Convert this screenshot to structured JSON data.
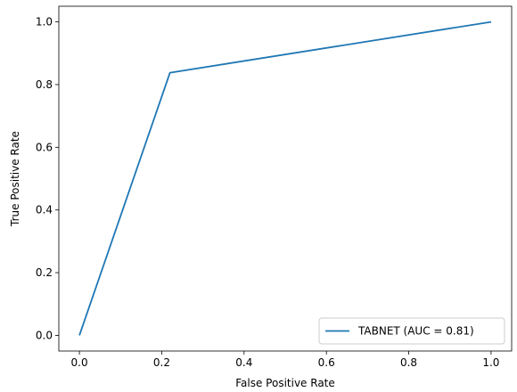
{
  "chart_data": {
    "type": "line",
    "xlabel": "False Positive Rate",
    "ylabel": "True Positive Rate",
    "xlim": [
      -0.05,
      1.05
    ],
    "ylim": [
      -0.05,
      1.05
    ],
    "xticks": [
      0.0,
      0.2,
      0.4,
      0.6,
      0.8,
      1.0
    ],
    "yticks": [
      0.0,
      0.2,
      0.4,
      0.6,
      0.8,
      1.0
    ],
    "xtick_labels": [
      "0.0",
      "0.2",
      "0.4",
      "0.6",
      "0.8",
      "1.0"
    ],
    "ytick_labels": [
      "0.0",
      "0.2",
      "0.4",
      "0.6",
      "0.8",
      "1.0"
    ],
    "grid": false,
    "legend_position": "bottom-right",
    "series": [
      {
        "name": "TABNET (AUC = 0.81)",
        "color": "#1f77b4",
        "x": [
          0.0,
          0.22,
          1.0
        ],
        "y": [
          0.0,
          0.838,
          1.0
        ]
      }
    ]
  }
}
